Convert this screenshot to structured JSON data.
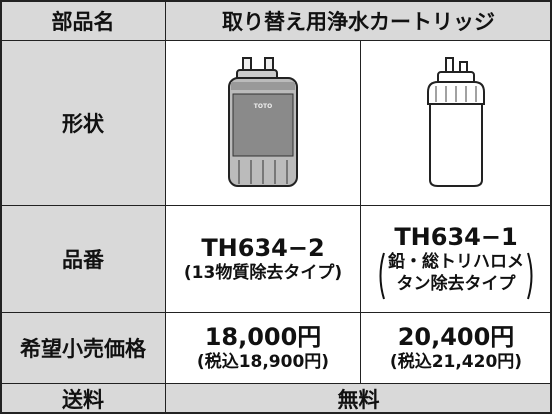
{
  "table": {
    "header": [
      "部品名",
      "取り替え用浄水カートリッジ"
    ],
    "shape": {
      "label": "形状",
      "brand": "TOTO"
    },
    "part": {
      "label": "品番",
      "items": [
        {
          "code": "TH634−2",
          "note": "(13物質除去タイプ)"
        },
        {
          "code": "TH634−1",
          "note_lines": [
            "鉛・総トリハロメ",
            "タン除去タイプ"
          ]
        }
      ]
    },
    "price": {
      "label": "希望小売価格",
      "items": [
        {
          "price": "18,000円",
          "tax": "(税込18,900円)"
        },
        {
          "price": "20,400円",
          "tax": "(税込21,420円)"
        }
      ]
    },
    "shipping": {
      "label": "送料",
      "value": "無料"
    }
  }
}
